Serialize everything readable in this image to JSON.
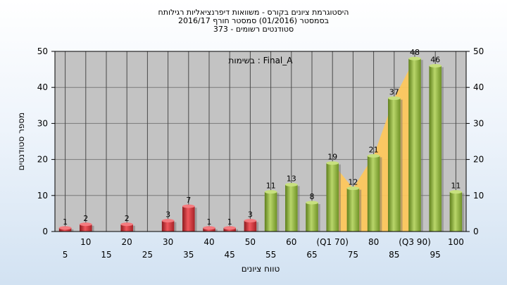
{
  "chart_data": {
    "type": "bar",
    "title_lines": [
      "היסטוגרמת ציונים בקורס - משוואות דיפרנציאליות רגילותח",
      "בסמסטר  (01/2016)  סמסטר חורף 2016/17",
      "סטודנטים רשומים - 373"
    ],
    "annotation": "בשימות : Final_A",
    "xlabel": "טווח ציונים",
    "ylabel": "מספר סטודנטים",
    "ylim": [
      0,
      50
    ],
    "yticks": [
      0,
      10,
      20,
      30,
      40,
      50
    ],
    "grid": true,
    "categories": [
      "5",
      "10",
      "15",
      "20",
      "25",
      "30",
      "35",
      "40",
      "45",
      "50",
      "55",
      "60",
      "65",
      "(Q1 70)",
      "75",
      "80",
      "85",
      "(Q3 90)",
      "95",
      "100"
    ],
    "values": [
      1,
      2,
      0,
      2,
      0,
      3,
      7,
      1,
      1,
      3,
      11,
      13,
      8,
      19,
      12,
      21,
      37,
      48,
      46,
      11
    ],
    "value_labels": [
      "1",
      "2",
      "",
      "2",
      "",
      "3",
      "7",
      "1",
      "1",
      "3",
      "11",
      "13",
      "8",
      "19",
      "12",
      "21",
      "37",
      "48",
      "46",
      "11"
    ],
    "bar_colors": [
      "red",
      "red",
      "red",
      "red",
      "red",
      "red",
      "red",
      "red",
      "red",
      "red",
      "green",
      "green",
      "green",
      "green",
      "green",
      "green",
      "green",
      "green",
      "green",
      "green"
    ],
    "colors": {
      "red": "#d8333a",
      "green": "#8fb43f",
      "band": "#ffc85a",
      "plot_bg": "#c3c3c3"
    }
  }
}
